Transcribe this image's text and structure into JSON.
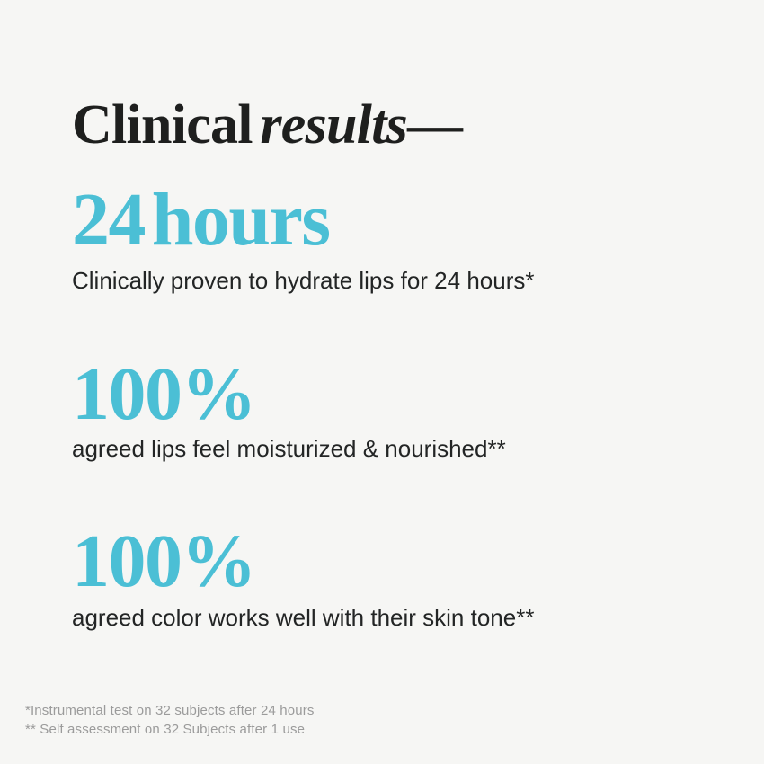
{
  "page": {
    "background_color": "#f6f6f4",
    "accent_color": "#4bbfd5",
    "ink_color": "#1e1f1e",
    "muted_color": "#9b9b9b"
  },
  "headline": {
    "regular": "Clinical",
    "italic": "results",
    "dash": "—"
  },
  "stats": [
    {
      "value": "24 hours",
      "caption": "Clinically proven to hydrate lips for 24 hours*"
    },
    {
      "value": "100%",
      "caption": "agreed lips feel moisturized & nourished**"
    },
    {
      "value": "100%",
      "caption": "agreed color works well with their skin tone**"
    }
  ],
  "footnotes": [
    "*Instrumental test on 32 subjects after 24 hours",
    "** Self assessment on 32 Subjects after 1 use"
  ]
}
